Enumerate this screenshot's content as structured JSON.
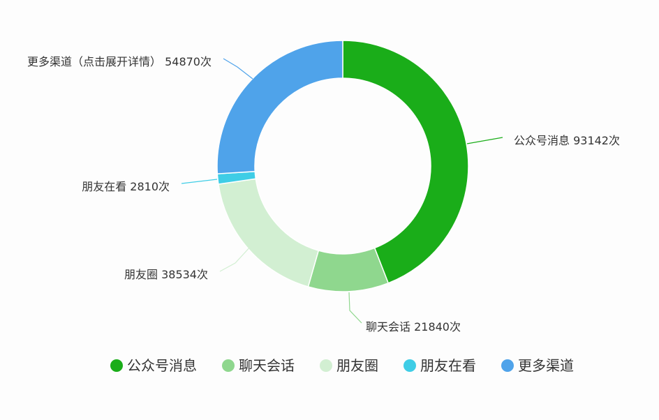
{
  "chart_data": {
    "type": "pie",
    "donut": true,
    "title": "",
    "unit": "次",
    "slices": [
      {
        "name": "公众号消息",
        "value": 93142,
        "color": "#1aad19",
        "label": "公众号消息 93142次"
      },
      {
        "name": "聊天会话",
        "value": 21840,
        "color": "#8fd78e",
        "label": "聊天会话 21840次"
      },
      {
        "name": "朋友圈",
        "value": 38534,
        "color": "#d2efd2",
        "label": "朋友圈 38534次"
      },
      {
        "name": "朋友在看",
        "value": 2810,
        "color": "#3fcde6",
        "label": "朋友在看 2810次"
      },
      {
        "name": "更多渠道",
        "value": 54870,
        "color": "#4fa3ea",
        "label": "更多渠道（点击展开详情） 54870次"
      }
    ],
    "legend": {
      "position": "bottom",
      "items": [
        "公众号消息",
        "聊天会话",
        "朋友圈",
        "朋友在看",
        "更多渠道"
      ]
    }
  }
}
